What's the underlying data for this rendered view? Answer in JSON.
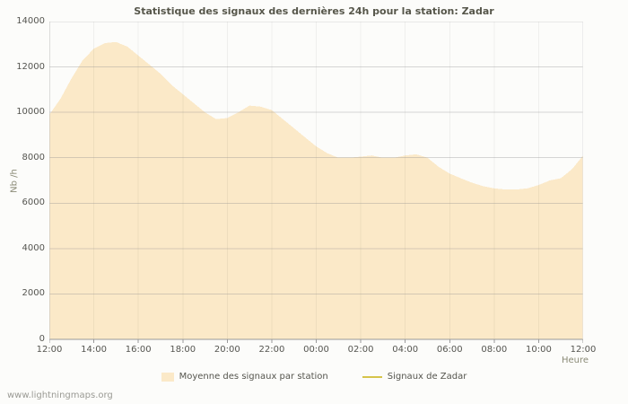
{
  "page": {
    "watermark": "www.lightningmaps.org"
  },
  "chart_data": {
    "type": "area",
    "title": "Statistique des signaux des dernières 24h pour la station: Zadar",
    "xlabel": "Heure",
    "ylabel": "Nb /h",
    "ylim": [
      0,
      14000
    ],
    "y_ticks": [
      0,
      2000,
      4000,
      6000,
      8000,
      10000,
      12000,
      14000
    ],
    "x_tick_labels": [
      "12:00",
      "14:00",
      "16:00",
      "18:00",
      "20:00",
      "22:00",
      "00:00",
      "02:00",
      "04:00",
      "06:00",
      "08:00",
      "10:00",
      "12:00"
    ],
    "grid": true,
    "legend_position": "bottom",
    "series": [
      {
        "name": "Moyenne des signaux par station",
        "type": "area",
        "color": "#fbe9c8",
        "x_step_minutes": 30,
        "values": [
          9900,
          10600,
          11500,
          12300,
          12800,
          13050,
          13100,
          12900,
          12500,
          12100,
          11700,
          11200,
          10800,
          10400,
          10000,
          9700,
          9750,
          10000,
          10300,
          10250,
          10100,
          9700,
          9300,
          8900,
          8500,
          8200,
          8000,
          8000,
          8050,
          8100,
          8000,
          8000,
          8100,
          8150,
          8000,
          7600,
          7300,
          7100,
          6900,
          6750,
          6650,
          6600,
          6600,
          6650,
          6800,
          7000,
          7100,
          7500,
          8100
        ]
      },
      {
        "name": "Signaux de Zadar",
        "type": "line",
        "color": "#d6c44a",
        "values": []
      }
    ]
  }
}
